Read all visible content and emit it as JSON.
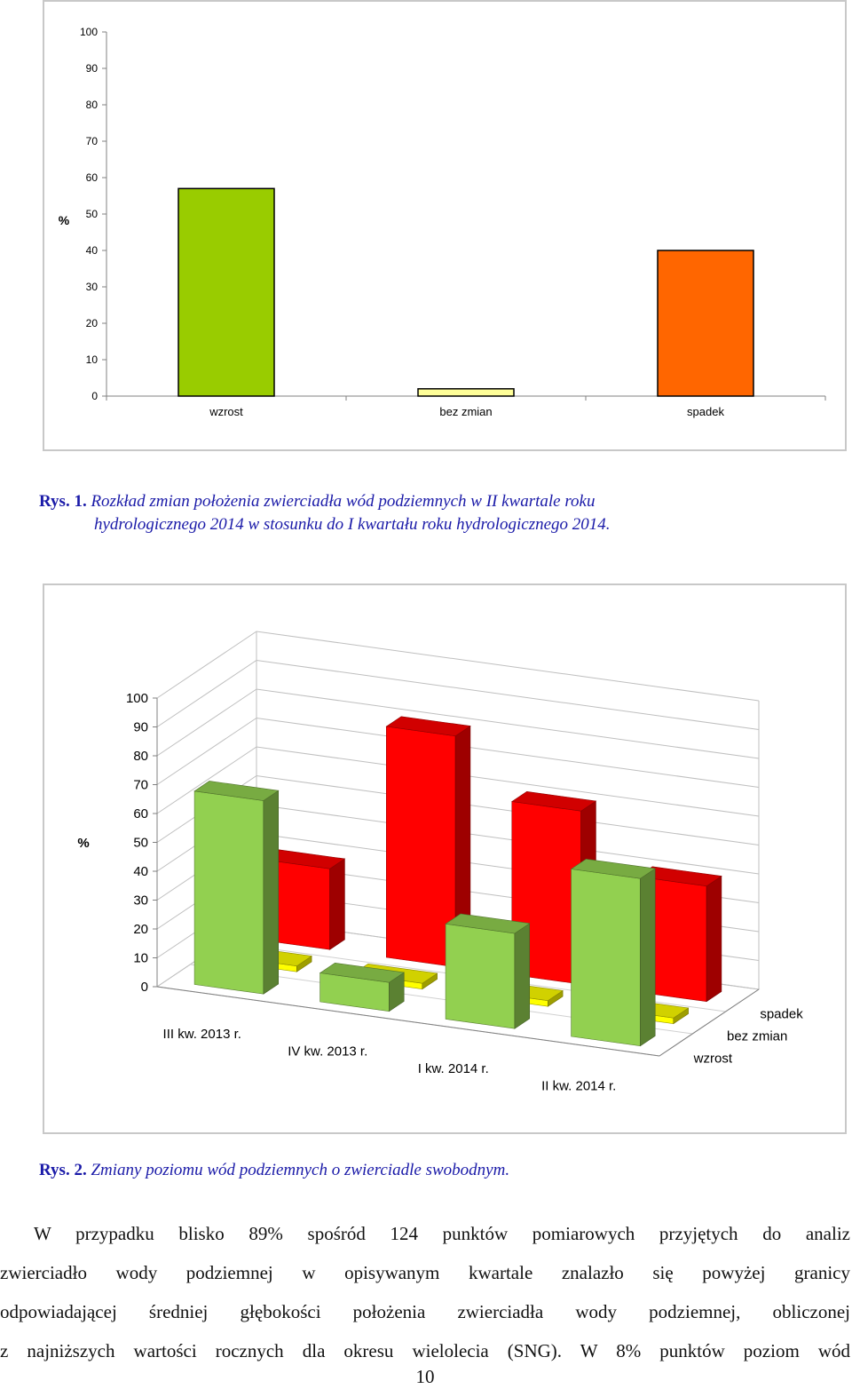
{
  "chart_data": [
    {
      "type": "bar",
      "title": "",
      "xlabel": "",
      "ylabel": "%",
      "ylim": [
        0,
        100
      ],
      "yticks": [
        0,
        10,
        20,
        30,
        40,
        50,
        60,
        70,
        80,
        90,
        100
      ],
      "categories": [
        "wzrost",
        "bez zmian",
        "spadek"
      ],
      "values": [
        57,
        2,
        40
      ],
      "colors": [
        "#99cc00",
        "#ffff99",
        "#ff6600"
      ],
      "grid": false
    },
    {
      "type": "bar3d",
      "title": "",
      "ylabel": "%",
      "ylim": [
        0,
        100
      ],
      "yticks": [
        0,
        10,
        20,
        30,
        40,
        50,
        60,
        70,
        80,
        90,
        100
      ],
      "categories": [
        "III kw. 2013 r.",
        "IV kw. 2013 r.",
        "I kw. 2014 r.",
        "II kw. 2014 r."
      ],
      "series": [
        {
          "name": "wzrost",
          "values": [
            67,
            10,
            33,
            58
          ],
          "color": "#92d050"
        },
        {
          "name": "bez zmian",
          "values": [
            2,
            2,
            2,
            2
          ],
          "color": "#ffff00"
        },
        {
          "name": "spadek",
          "values": [
            28,
            80,
            60,
            40
          ],
          "color": "#ff0000"
        }
      ],
      "grid": true
    }
  ],
  "captions": {
    "fig1_label": "Rys. 1.",
    "fig1_text_line1": "Rozkład zmian położenia zwierciadła wód podziemnych w II kwartale roku",
    "fig1_text_line2": "hydrologicznego 2014 w stosunku do I kwartału roku hydrologicznego 2014.",
    "fig2_label": "Rys. 2.",
    "fig2_text": "Zmiany poziomu wód podziemnych o zwierciadle swobodnym."
  },
  "paragraph": {
    "lines": [
      "W przypadku blisko 89% spośród 124 punktów pomiarowych przyjętych do analiz",
      "zwierciadło wody podziemnej w opisywanym kwartale znalazło się powyżej granicy",
      "odpowiadającej średniej głębokości położenia zwierciadła wody podziemnej, obliczonej",
      "z najniższych wartości rocznych dla okresu wielolecia (SNG). W 8% punktów poziom wód"
    ]
  },
  "page_number": "10"
}
